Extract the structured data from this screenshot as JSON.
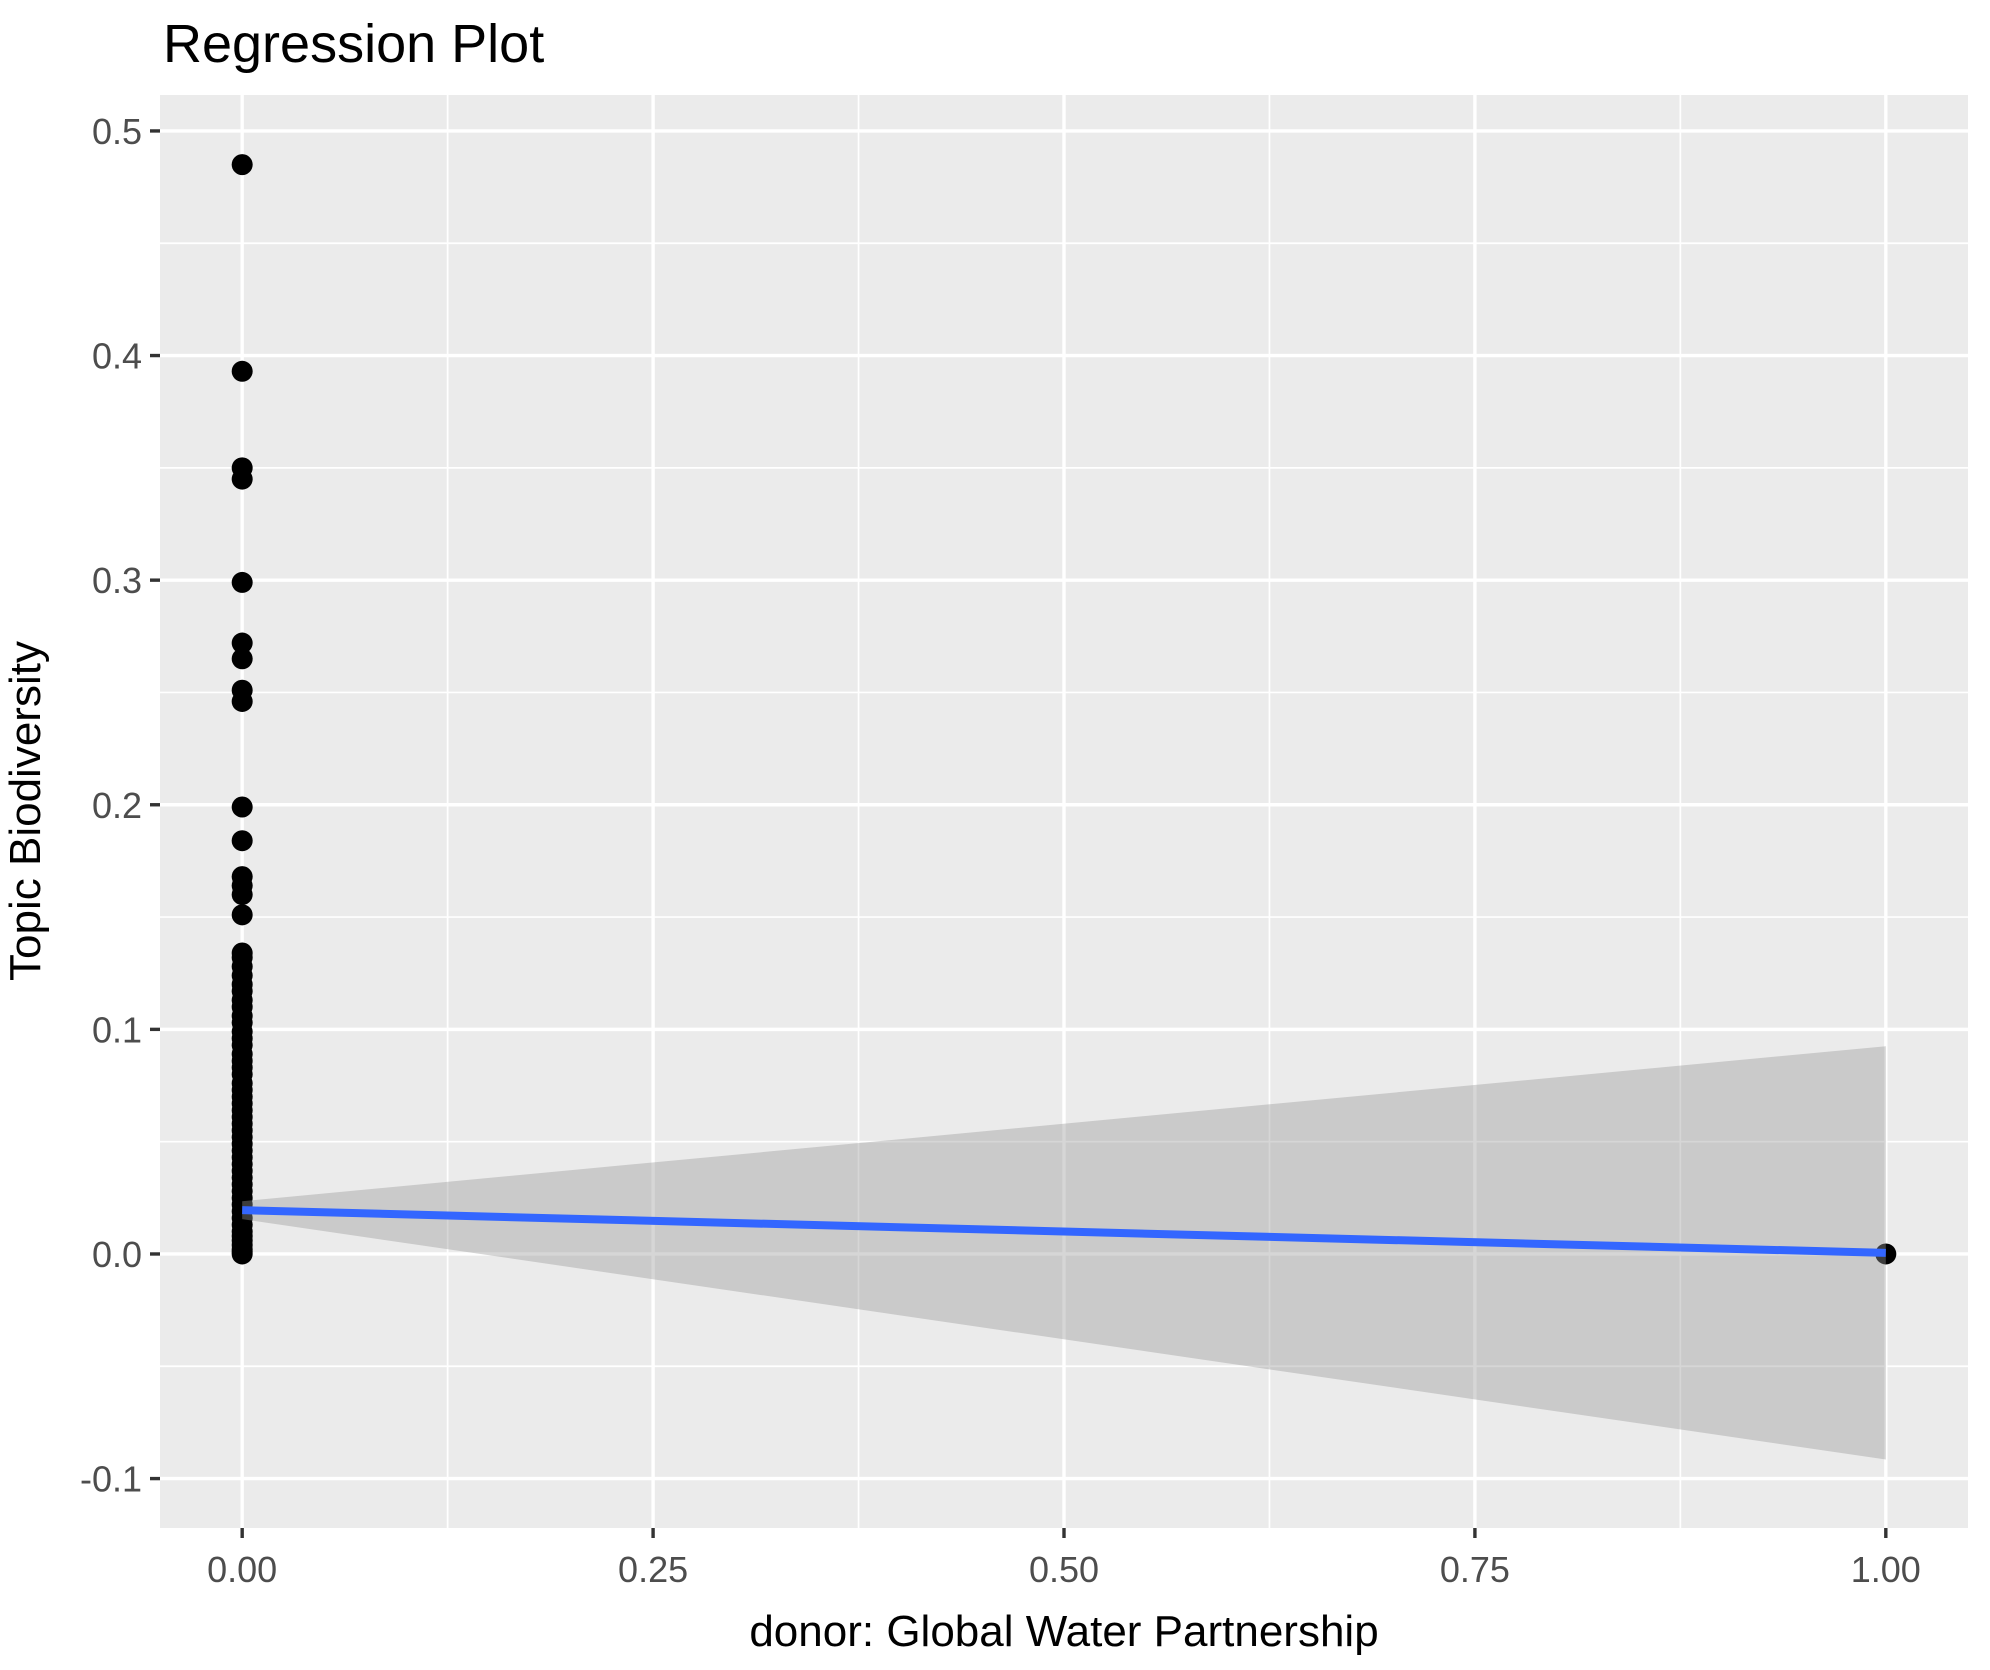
{
  "chart_data": {
    "type": "scatter",
    "title": "Regression Plot",
    "xlabel": "donor: Global Water Partnership",
    "ylabel": "Topic Biodiversity",
    "xlim": [
      -0.05,
      1.05
    ],
    "ylim": [
      -0.122,
      0.516
    ],
    "x_major_ticks": [
      0.0,
      0.25,
      0.5,
      0.75,
      1.0
    ],
    "x_tick_labels": [
      "0.00",
      "0.25",
      "0.50",
      "0.75",
      "1.00"
    ],
    "x_minor_ticks": [
      0.125,
      0.375,
      0.625,
      0.875
    ],
    "y_major_ticks": [
      -0.1,
      0.0,
      0.1,
      0.2,
      0.3,
      0.4,
      0.5
    ],
    "y_tick_labels": [
      "-0.1",
      "0.0",
      "0.1",
      "0.2",
      "0.3",
      "0.4",
      "0.5"
    ],
    "y_minor_ticks": [
      -0.05,
      0.05,
      0.15,
      0.25,
      0.35,
      0.45
    ],
    "grid": true,
    "legend": false,
    "points": [
      [
        0,
        0.485
      ],
      [
        0,
        0.393
      ],
      [
        0,
        0.35
      ],
      [
        0,
        0.345
      ],
      [
        0,
        0.299
      ],
      [
        0,
        0.272
      ],
      [
        0,
        0.265
      ],
      [
        0,
        0.251
      ],
      [
        0,
        0.246
      ],
      [
        0,
        0.199
      ],
      [
        0,
        0.184
      ],
      [
        0,
        0.168
      ],
      [
        0,
        0.164
      ],
      [
        0,
        0.16
      ],
      [
        0,
        0.151
      ],
      [
        0,
        0.134
      ],
      [
        0,
        0.132
      ],
      [
        0,
        0.128
      ],
      [
        0,
        0.124
      ],
      [
        0,
        0.12
      ],
      [
        0,
        0.117
      ],
      [
        0,
        0.113
      ],
      [
        0,
        0.11
      ],
      [
        0,
        0.106
      ],
      [
        0,
        0.103
      ],
      [
        0,
        0.099
      ],
      [
        0,
        0.096
      ],
      [
        0,
        0.093
      ],
      [
        0,
        0.089
      ],
      [
        0,
        0.086
      ],
      [
        0,
        0.083
      ],
      [
        0,
        0.08
      ],
      [
        0,
        0.076
      ],
      [
        0,
        0.073
      ],
      [
        0,
        0.07
      ],
      [
        0,
        0.067
      ],
      [
        0,
        0.064
      ],
      [
        0,
        0.061
      ],
      [
        0,
        0.058
      ],
      [
        0,
        0.055
      ],
      [
        0,
        0.052
      ],
      [
        0,
        0.049
      ],
      [
        0,
        0.046
      ],
      [
        0,
        0.043
      ],
      [
        0,
        0.04
      ],
      [
        0,
        0.037
      ],
      [
        0,
        0.034
      ],
      [
        0,
        0.031
      ],
      [
        0,
        0.028
      ],
      [
        0,
        0.025
      ],
      [
        0,
        0.022
      ],
      [
        0,
        0.019
      ],
      [
        0,
        0.016
      ],
      [
        0,
        0.013
      ],
      [
        0,
        0.01
      ],
      [
        0,
        0.008
      ],
      [
        0,
        0.006
      ],
      [
        0,
        0.004
      ],
      [
        0,
        0.002
      ],
      [
        0,
        0.001
      ],
      [
        0,
        0.0
      ],
      [
        1,
        0.0
      ]
    ],
    "regression_line": {
      "x": [
        0,
        1
      ],
      "y": [
        0.0195,
        0.0005
      ]
    },
    "ci_band": {
      "x": [
        0,
        1
      ],
      "upper": [
        0.0235,
        0.0925
      ],
      "lower": [
        0.0155,
        -0.0915
      ]
    },
    "colors": {
      "panel_background": "#EBEBEB",
      "gridline": "#FFFFFF",
      "point": "#000000",
      "regression_line": "#3366FF",
      "ci_band": "#999999",
      "ci_band_opacity": 0.4,
      "tick_mark": "#333333",
      "tick_text": "#4D4D4D",
      "title_text": "#000000"
    }
  }
}
